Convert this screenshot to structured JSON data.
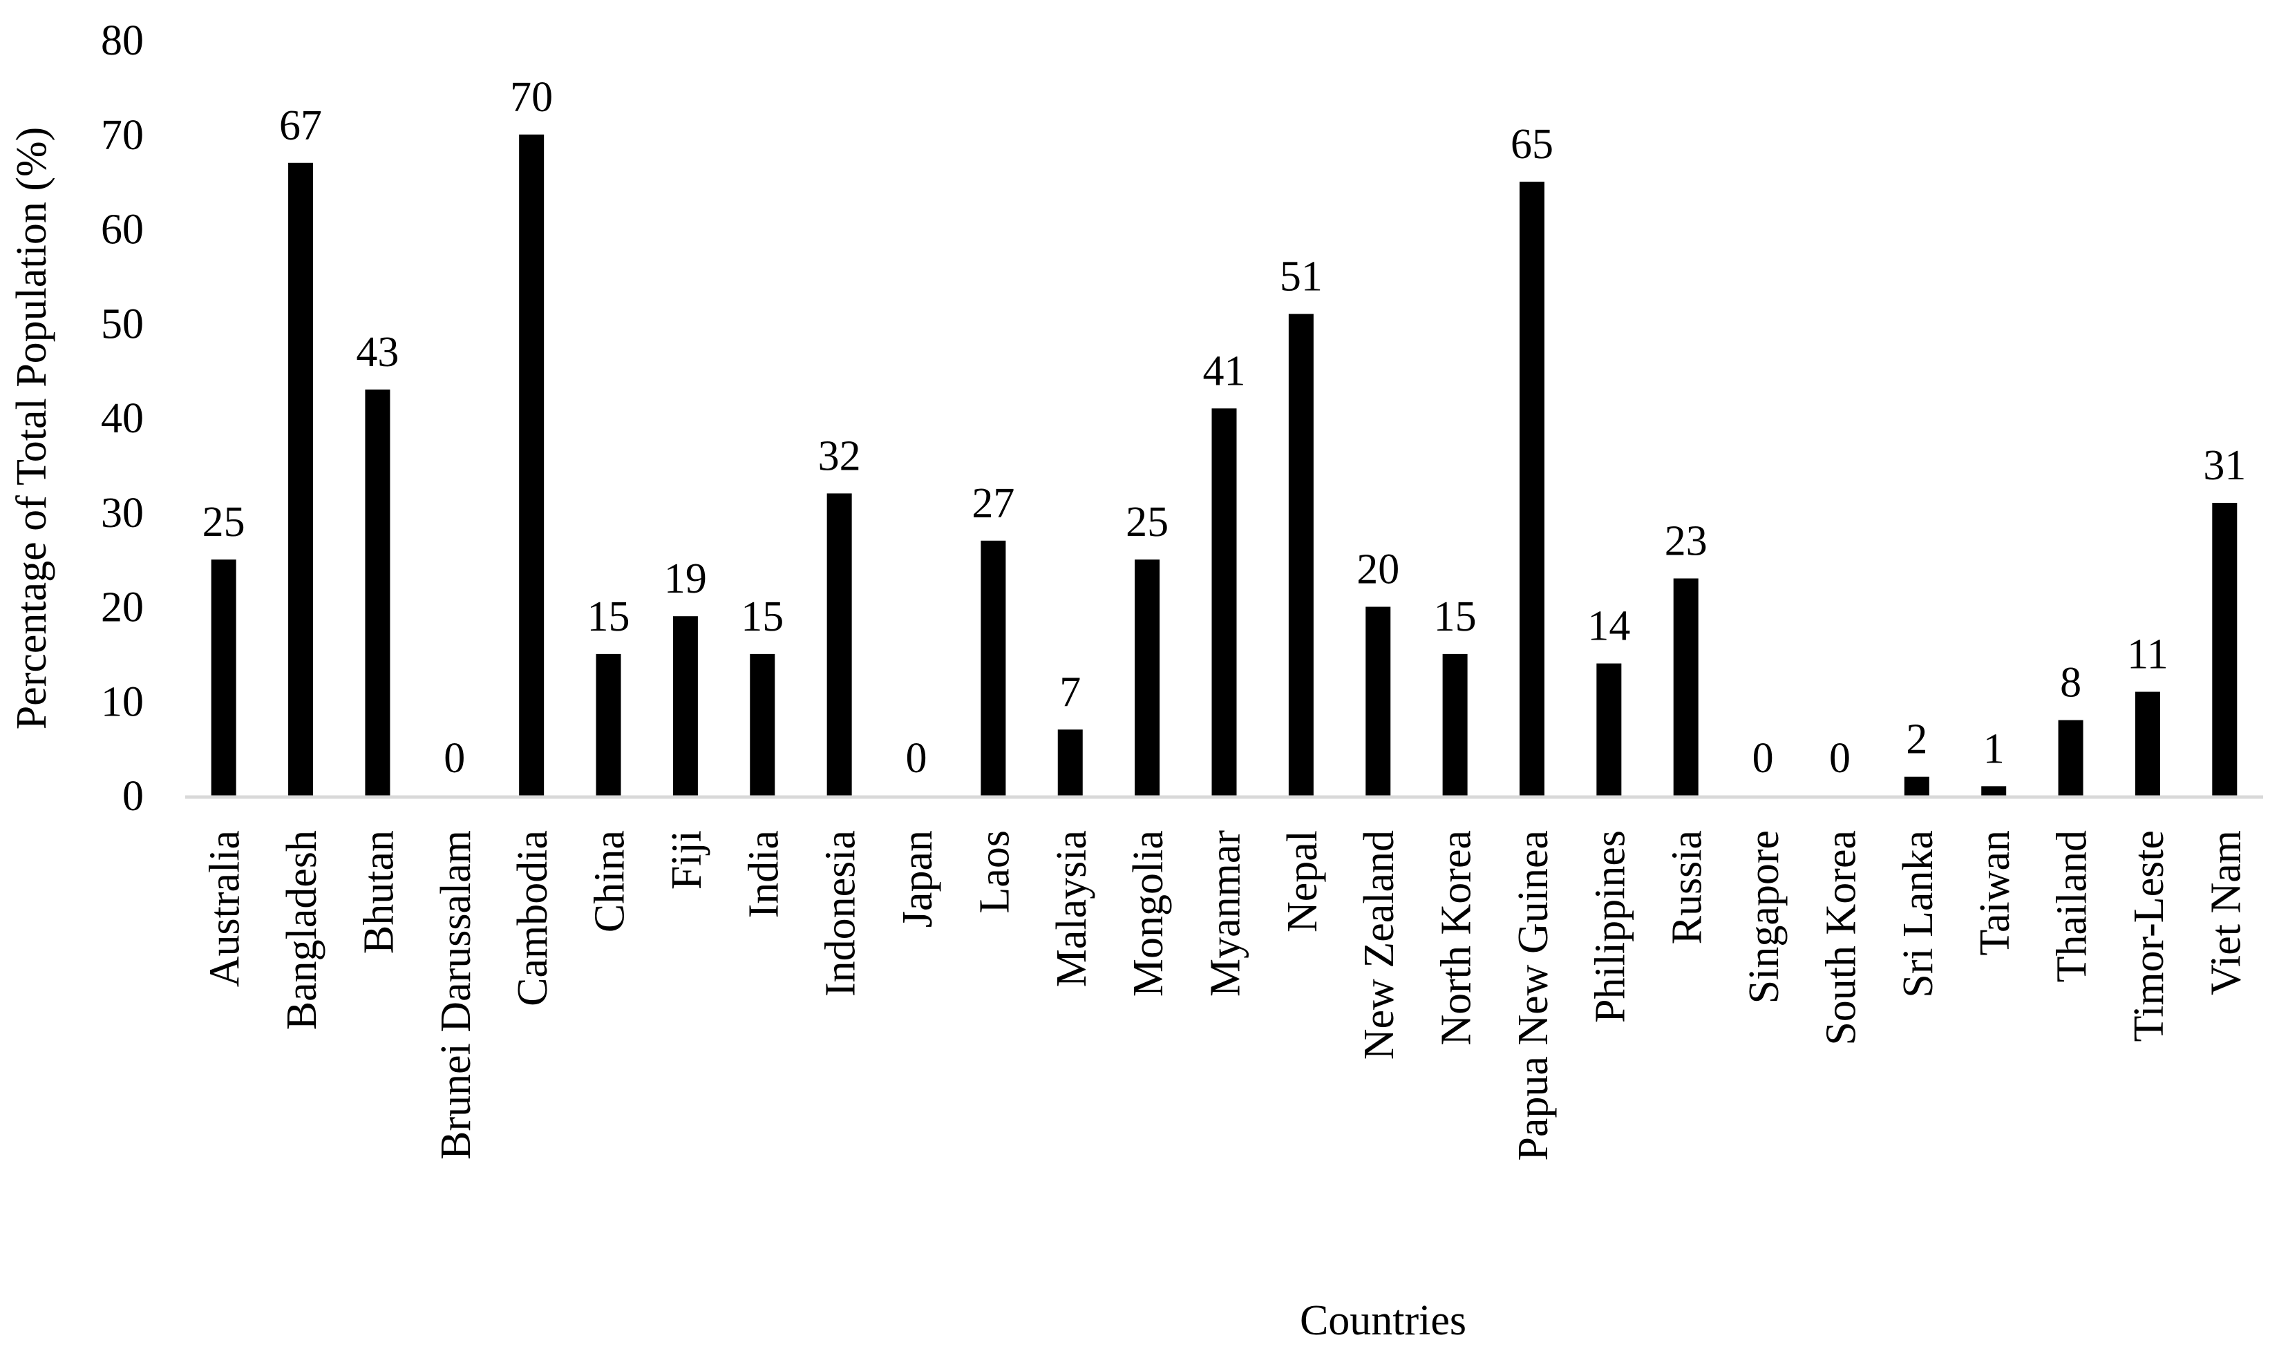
{
  "chart_data": {
    "type": "bar",
    "title": "",
    "xlabel": "Countries",
    "ylabel": "Percentage of Total Population (%)",
    "ylim": [
      0,
      80
    ],
    "yticks": [
      0,
      10,
      20,
      30,
      40,
      50,
      60,
      70,
      80
    ],
    "grid": false,
    "legend": "none",
    "bar_color": "#000000",
    "categories": [
      "Australia",
      "Bangladesh",
      "Bhutan",
      "Brunei Darussalam",
      "Cambodia",
      "China",
      "Fiji",
      "India",
      "Indonesia",
      "Japan",
      "Laos",
      "Malaysia",
      "Mongolia",
      "Myanmar",
      "Nepal",
      "New Zealand",
      "North Korea",
      "Papua New Guinea",
      "Philippines",
      "Russia",
      "Singapore",
      "South Korea",
      "Sri Lanka",
      "Taiwan",
      "Thailand",
      "Timor-Leste",
      "Viet Nam"
    ],
    "values": [
      25,
      67,
      43,
      0,
      70,
      15,
      19,
      15,
      32,
      0,
      27,
      7,
      25,
      41,
      51,
      20,
      15,
      65,
      14,
      23,
      0,
      0,
      2,
      1,
      8,
      11,
      31
    ]
  }
}
